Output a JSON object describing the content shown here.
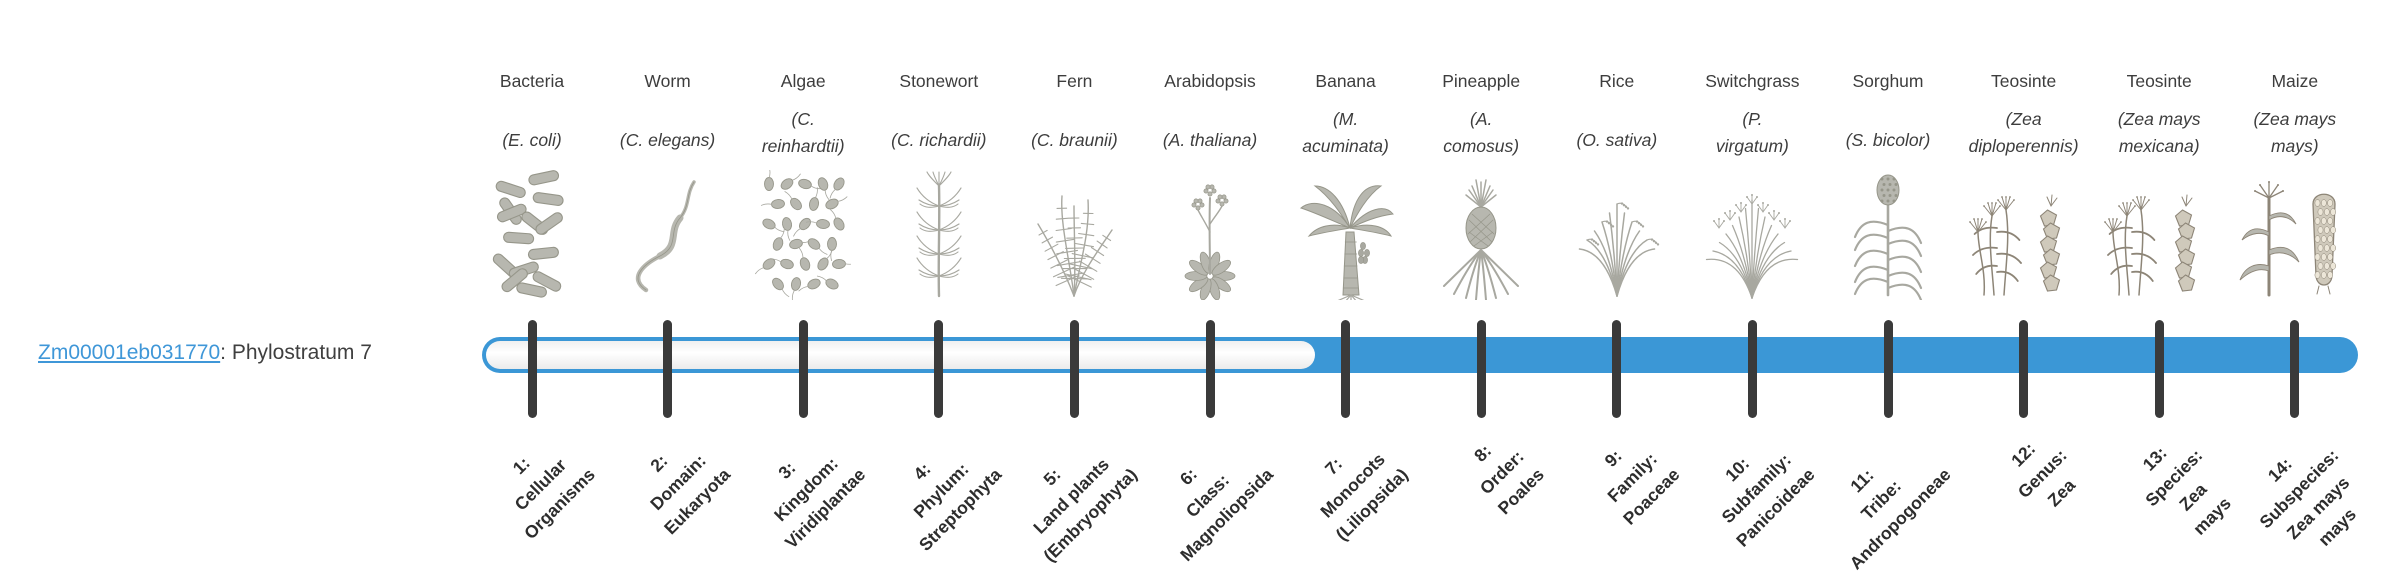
{
  "gene": {
    "id": "Zm00001eb031770",
    "suffix": ": Phylostratum 7",
    "phylostratum": 7
  },
  "colors": {
    "accent_blue": "#3b97d6",
    "link_blue": "#3f97d8",
    "tick_dark": "#3a3a3a",
    "label_text": "#3d3d3d",
    "stratum_text": "#2d2d2d",
    "art_gray_fill": "#b7b7af",
    "art_gray_stroke": "#96968a",
    "art_gray_line": "#a8a8a0",
    "art_sepia_fill": "#cfc9bb",
    "art_sepia_stroke": "#8d8577"
  },
  "timeline": {
    "total_strata": 14,
    "filled_from_stratum": 7,
    "note": "strata 1-6 unfilled (white track), strata 7-14 filled blue"
  },
  "taxa": [
    {
      "stratum": 1,
      "common_name": "Bacteria",
      "species_lines": [
        "(E. coli)"
      ],
      "icon": "bacteria",
      "stratum_label_lines": [
        "1:",
        "Cellular",
        "Organisms"
      ]
    },
    {
      "stratum": 2,
      "common_name": "Worm",
      "species_lines": [
        "(C. elegans)"
      ],
      "icon": "worm",
      "stratum_label_lines": [
        "2:",
        "Domain:",
        "Eukaryota"
      ]
    },
    {
      "stratum": 3,
      "common_name": "Algae",
      "species_lines": [
        "(C.",
        "reinhardtii)"
      ],
      "icon": "algae",
      "stratum_label_lines": [
        "3:",
        "Kingdom:",
        "Viridiplantae"
      ]
    },
    {
      "stratum": 4,
      "common_name": "Stonewort",
      "species_lines": [
        "(C. richardii)"
      ],
      "icon": "stonewort",
      "stratum_label_lines": [
        "4:",
        "Phylum:",
        "Streptophyta"
      ]
    },
    {
      "stratum": 5,
      "common_name": "Fern",
      "species_lines": [
        "(C. braunii)"
      ],
      "icon": "fern",
      "stratum_label_lines": [
        "5:",
        "Land plants",
        "(Embryophyta)"
      ]
    },
    {
      "stratum": 6,
      "common_name": "Arabidopsis",
      "species_lines": [
        "(A. thaliana)"
      ],
      "icon": "arabidopsis",
      "stratum_label_lines": [
        "6:",
        "Class:",
        "Magnoliopsida"
      ]
    },
    {
      "stratum": 7,
      "common_name": "Banana",
      "species_lines": [
        "(M.",
        "acuminata)"
      ],
      "icon": "banana",
      "stratum_label_lines": [
        "7:",
        "Monocots",
        "(Liliopsida)"
      ]
    },
    {
      "stratum": 8,
      "common_name": "Pineapple",
      "species_lines": [
        "(A.",
        "comosus)"
      ],
      "icon": "pineapple",
      "stratum_label_lines": [
        "8:",
        "Order:",
        "Poales"
      ]
    },
    {
      "stratum": 9,
      "common_name": "Rice",
      "species_lines": [
        "(O. sativa)"
      ],
      "icon": "rice",
      "stratum_label_lines": [
        "9:",
        "Family:",
        "Poaceae"
      ]
    },
    {
      "stratum": 10,
      "common_name": "Switchgrass",
      "species_lines": [
        "(P.",
        "virgatum)"
      ],
      "icon": "switchgrass",
      "stratum_label_lines": [
        "10:",
        "Subfamily:",
        "Panicoideae"
      ]
    },
    {
      "stratum": 11,
      "common_name": "Sorghum",
      "species_lines": [
        "(S. bicolor)"
      ],
      "icon": "sorghum",
      "stratum_label_lines": [
        "11:",
        "Tribe:",
        "Andropogoneae"
      ]
    },
    {
      "stratum": 12,
      "common_name": "Teosinte",
      "species_lines": [
        "(Zea",
        "diploperennis)"
      ],
      "icon": "teosinte",
      "stratum_label_lines": [
        "12:",
        "Genus:",
        "Zea"
      ]
    },
    {
      "stratum": 13,
      "common_name": "Teosinte",
      "species_lines": [
        "(Zea mays",
        "mexicana)"
      ],
      "icon": "teosinte",
      "stratum_label_lines": [
        "13:",
        "Species:",
        "Zea",
        "mays"
      ]
    },
    {
      "stratum": 14,
      "common_name": "Maize",
      "species_lines": [
        "(Zea mays",
        "mays)"
      ],
      "icon": "maize",
      "stratum_label_lines": [
        "14:",
        "Subspecies:",
        "Zea mays",
        "mays"
      ]
    }
  ]
}
